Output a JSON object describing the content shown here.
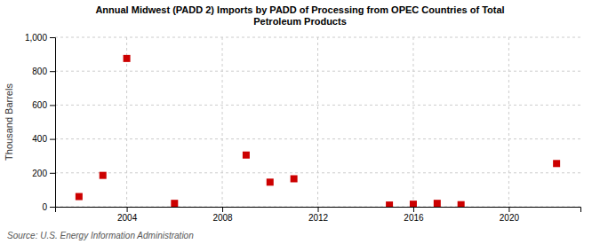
{
  "chart_data": {
    "type": "scatter",
    "title": "Annual Midwest (PADD 2) Imports by PADD of Processing from OPEC Countries of Total\nPetroleum Products",
    "ylabel": "Thousand Barrels",
    "annotations": [
      "Source: U.S. Energy Information Administration"
    ],
    "x": [
      2002,
      2003,
      2004,
      2006,
      2009,
      2010,
      2011,
      2015,
      2016,
      2017,
      2018,
      2022
    ],
    "values": [
      60,
      185,
      875,
      20,
      305,
      145,
      165,
      10,
      15,
      20,
      12,
      255
    ],
    "color": "#cc0000",
    "marker": "square",
    "xlim": [
      2001,
      2023
    ],
    "ylim": [
      0,
      1000
    ],
    "xticks": [
      2004,
      2008,
      2012,
      2016,
      2020
    ],
    "yticks": [
      0,
      200,
      400,
      600,
      800,
      {
        "value": 1000,
        "label": "1,000"
      }
    ],
    "grid": true
  }
}
